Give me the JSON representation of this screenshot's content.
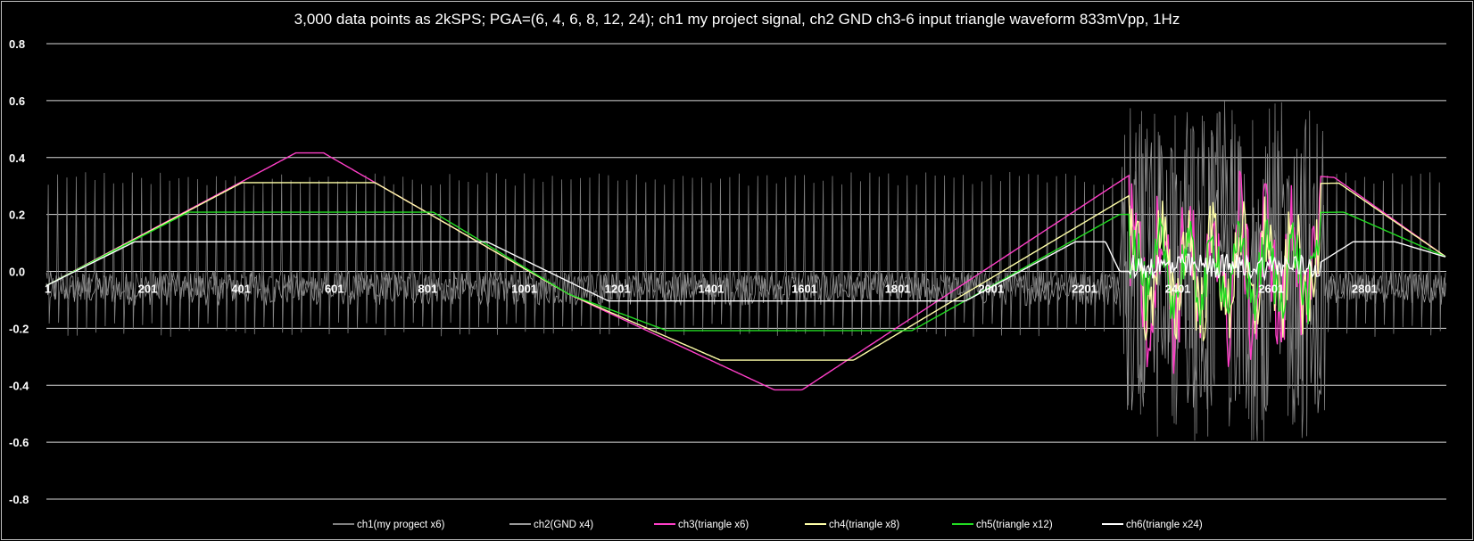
{
  "chart_data": {
    "type": "line",
    "title": "3,000 data points as 2kSPS;  PGA=(6, 4, 6, 8, 12, 24); ch1 my project signal, ch2 GND ch3-6 input triangle waveform 833mVpp, 1Hz",
    "xlabel": "",
    "ylabel": "",
    "xlim": [
      1,
      3000
    ],
    "ylim": [
      -0.8,
      0.8
    ],
    "y_ticks": [
      "0.8",
      "0.6",
      "0.4",
      "0.2",
      "0.0",
      "-0.2",
      "-0.4",
      "-0.6",
      "-0.8"
    ],
    "y_tick_values": [
      0.8,
      0.6,
      0.4,
      0.2,
      0.0,
      -0.2,
      -0.4,
      -0.6,
      -0.8
    ],
    "x_ticks": [
      "1",
      "201",
      "401",
      "601",
      "801",
      "1001",
      "1201",
      "1401",
      "1601",
      "1801",
      "2001",
      "2201",
      "2401",
      "2601",
      "2801"
    ],
    "x_tick_values": [
      1,
      201,
      401,
      601,
      801,
      1001,
      1201,
      1401,
      1601,
      1801,
      2001,
      2201,
      2401,
      2601,
      2801
    ],
    "grid": true,
    "legend_position": "bottom",
    "series": [
      {
        "name": "ch1(my progect x6)",
        "color": "#808080",
        "note_shape": "spiky-noise",
        "points": [
          [
            1,
            -0.05
          ],
          [
            250,
            0.0
          ],
          [
            500,
            0.0
          ],
          [
            750,
            0.0
          ],
          [
            1000,
            0.0
          ],
          [
            1250,
            0.0
          ],
          [
            1500,
            0.0
          ],
          [
            1750,
            0.0
          ],
          [
            2000,
            0.0
          ],
          [
            2250,
            0.0
          ],
          [
            2350,
            0.45
          ],
          [
            2450,
            -0.55
          ],
          [
            2550,
            0.55
          ],
          [
            2650,
            -0.5
          ],
          [
            2750,
            0.0
          ],
          [
            3000,
            0.0
          ]
        ]
      },
      {
        "name": "ch2(GND x4)",
        "color": "#9a9a9a",
        "note_shape": "noise",
        "points": [
          [
            1,
            0.0
          ],
          [
            1000,
            0.0
          ],
          [
            2000,
            0.0
          ],
          [
            2400,
            0.6
          ],
          [
            2550,
            0.62
          ],
          [
            3000,
            0.0
          ]
        ]
      },
      {
        "name": "ch3(triangle x6)",
        "color": "#ff3fc8",
        "points": [
          [
            1,
            -0.05
          ],
          [
            535,
            0.416
          ],
          [
            595,
            0.416
          ],
          [
            1120,
            -0.08
          ],
          [
            1560,
            -0.416
          ],
          [
            1620,
            -0.416
          ],
          [
            2360,
            0.38
          ],
          [
            2760,
            0.33
          ],
          [
            3000,
            0.05
          ]
        ]
      },
      {
        "name": "ch4(triangle x8)",
        "color": "#ffffa8",
        "points": [
          [
            1,
            -0.05
          ],
          [
            420,
            0.312
          ],
          [
            705,
            0.312
          ],
          [
            1120,
            -0.08
          ],
          [
            1445,
            -0.312
          ],
          [
            1730,
            -0.312
          ],
          [
            2355,
            0.3
          ],
          [
            2770,
            0.31
          ],
          [
            3000,
            0.05
          ]
        ]
      },
      {
        "name": "ch5(triangle x12)",
        "color": "#22dd22",
        "points": [
          [
            1,
            -0.05
          ],
          [
            305,
            0.208
          ],
          [
            830,
            0.208
          ],
          [
            1120,
            -0.08
          ],
          [
            1330,
            -0.208
          ],
          [
            1855,
            -0.208
          ],
          [
            2300,
            0.2
          ],
          [
            2780,
            0.208
          ],
          [
            3000,
            0.05
          ]
        ]
      },
      {
        "name": "ch6(triangle x24)",
        "color": "#ffffff",
        "points": [
          [
            1,
            -0.05
          ],
          [
            190,
            0.104
          ],
          [
            945,
            0.104
          ],
          [
            1205,
            -0.104
          ],
          [
            1970,
            -0.104
          ],
          [
            2205,
            0.104
          ],
          [
            2270,
            0.104
          ],
          [
            2300,
            0.0
          ],
          [
            2700,
            0.0
          ],
          [
            2800,
            0.104
          ],
          [
            2890,
            0.104
          ],
          [
            3000,
            0.05
          ]
        ]
      }
    ]
  }
}
